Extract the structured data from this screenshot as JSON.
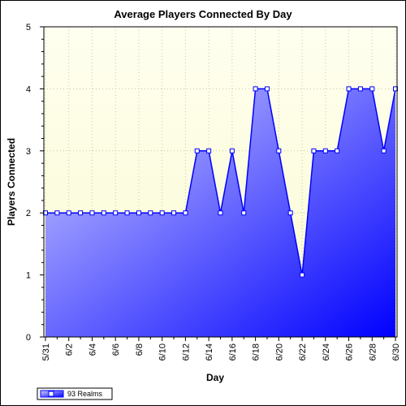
{
  "chart_data": {
    "type": "area",
    "title": "Average Players Connected By Day",
    "xlabel": "Day",
    "ylabel": "Players Connected",
    "ylim": [
      0,
      5
    ],
    "yticks": [
      0,
      1,
      2,
      3,
      4,
      5
    ],
    "grid": true,
    "legend_position": "bottom-left",
    "x": [
      "5/31",
      "6/1",
      "6/2",
      "6/3",
      "6/4",
      "6/5",
      "6/6",
      "6/7",
      "6/8",
      "6/9",
      "6/10",
      "6/11",
      "6/12",
      "6/13",
      "6/14",
      "6/15",
      "6/16",
      "6/17",
      "6/18",
      "6/19",
      "6/20",
      "6/21",
      "6/22",
      "6/23",
      "6/24",
      "6/25",
      "6/26",
      "6/27",
      "6/28",
      "6/29",
      "6/30"
    ],
    "xtick_labels": [
      "5/31",
      "6/2",
      "6/4",
      "6/6",
      "6/8",
      "6/10",
      "6/12",
      "6/14",
      "6/16",
      "6/18",
      "6/20",
      "6/22",
      "6/24",
      "6/26",
      "6/28",
      "6/30"
    ],
    "series": [
      {
        "name": "93 Realms",
        "values": [
          2,
          2,
          2,
          2,
          2,
          2,
          2,
          2,
          2,
          2,
          2,
          2,
          2,
          3,
          3,
          2,
          3,
          2,
          4,
          4,
          3,
          2,
          1,
          3,
          3,
          3,
          4,
          4,
          4,
          3,
          4
        ]
      }
    ],
    "colors": {
      "plot_background_top": "#fffff0",
      "plot_background_bottom": "#fafad2",
      "area_fill_start": "#d0d0ff",
      "area_fill_end": "#0000ff",
      "line": "#0000ff",
      "marker_fill": "#ffffff",
      "grid": "#c8c8a0"
    }
  }
}
